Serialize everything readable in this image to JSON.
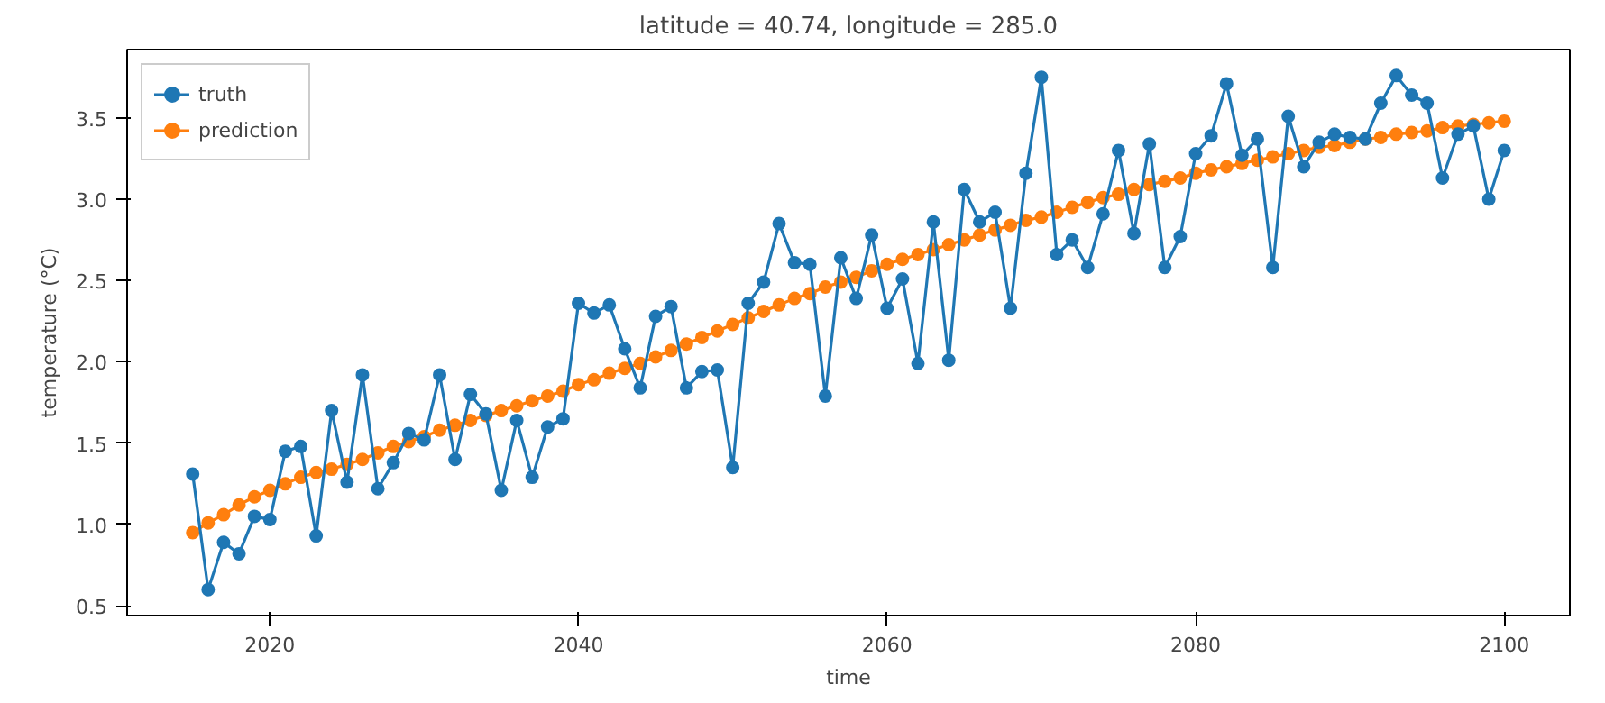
{
  "chart_data": {
    "type": "line",
    "title": "latitude = 40.74, longitude = 285.0",
    "xlabel": "time",
    "ylabel": "temperature (°C)",
    "x": [
      2015,
      2016,
      2017,
      2018,
      2019,
      2020,
      2021,
      2022,
      2023,
      2024,
      2025,
      2026,
      2027,
      2028,
      2029,
      2030,
      2031,
      2032,
      2033,
      2034,
      2035,
      2036,
      2037,
      2038,
      2039,
      2040,
      2041,
      2042,
      2043,
      2044,
      2045,
      2046,
      2047,
      2048,
      2049,
      2050,
      2051,
      2052,
      2053,
      2054,
      2055,
      2056,
      2057,
      2058,
      2059,
      2060,
      2061,
      2062,
      2063,
      2064,
      2065,
      2066,
      2067,
      2068,
      2069,
      2070,
      2071,
      2072,
      2073,
      2074,
      2075,
      2076,
      2077,
      2078,
      2079,
      2080,
      2081,
      2082,
      2083,
      2084,
      2085,
      2086,
      2087,
      2088,
      2089,
      2090,
      2091,
      2092,
      2093,
      2094,
      2095,
      2096,
      2097,
      2098,
      2099,
      2100
    ],
    "series": [
      {
        "name": "truth",
        "color": "#1f77b4",
        "values": [
          1.31,
          0.6,
          0.89,
          0.82,
          1.05,
          1.03,
          1.45,
          1.48,
          0.93,
          1.7,
          1.26,
          1.92,
          1.22,
          1.38,
          1.56,
          1.52,
          1.92,
          1.4,
          1.8,
          1.68,
          1.21,
          1.64,
          1.29,
          1.6,
          1.65,
          2.36,
          2.3,
          2.35,
          2.08,
          1.84,
          2.28,
          2.34,
          1.84,
          1.94,
          1.95,
          1.35,
          2.36,
          2.49,
          2.85,
          2.61,
          2.6,
          1.79,
          2.64,
          2.39,
          2.78,
          2.33,
          2.51,
          1.99,
          2.86,
          2.01,
          3.06,
          2.86,
          2.92,
          2.33,
          3.16,
          3.75,
          2.66,
          2.75,
          2.58,
          2.91,
          3.3,
          2.79,
          3.34,
          2.58,
          2.77,
          3.28,
          3.39,
          3.71,
          3.27,
          3.37,
          2.58,
          3.51,
          3.2,
          3.35,
          3.4,
          3.38,
          3.37,
          3.59,
          3.76,
          3.64,
          3.59,
          3.13,
          3.4,
          3.45,
          3.0,
          3.3
        ]
      },
      {
        "name": "prediction",
        "color": "#ff7f0e",
        "values": [
          0.95,
          1.01,
          1.06,
          1.12,
          1.17,
          1.21,
          1.25,
          1.29,
          1.32,
          1.34,
          1.37,
          1.4,
          1.44,
          1.48,
          1.51,
          1.54,
          1.58,
          1.61,
          1.64,
          1.67,
          1.7,
          1.73,
          1.76,
          1.79,
          1.82,
          1.86,
          1.89,
          1.93,
          1.96,
          1.99,
          2.03,
          2.07,
          2.11,
          2.15,
          2.19,
          2.23,
          2.27,
          2.31,
          2.35,
          2.39,
          2.42,
          2.46,
          2.49,
          2.52,
          2.56,
          2.6,
          2.63,
          2.66,
          2.69,
          2.72,
          2.75,
          2.78,
          2.81,
          2.84,
          2.87,
          2.89,
          2.92,
          2.95,
          2.98,
          3.01,
          3.03,
          3.06,
          3.09,
          3.11,
          3.13,
          3.16,
          3.18,
          3.2,
          3.22,
          3.24,
          3.26,
          3.28,
          3.3,
          3.32,
          3.33,
          3.35,
          3.37,
          3.38,
          3.4,
          3.41,
          3.42,
          3.44,
          3.45,
          3.46,
          3.47,
          3.48
        ]
      }
    ],
    "xlim": [
      2010.75,
      2104.25
    ],
    "ylim": [
      0.44,
      3.92
    ],
    "xticks": [
      2020,
      2040,
      2060,
      2080,
      2100
    ],
    "yticks": [
      {
        "value": 0.5,
        "label": "0.5"
      },
      {
        "value": 1.0,
        "label": "1.0"
      },
      {
        "value": 1.5,
        "label": "1.5"
      },
      {
        "value": 2.0,
        "label": "2.0"
      },
      {
        "value": 2.5,
        "label": "2.5"
      },
      {
        "value": 3.0,
        "label": "3.0"
      },
      {
        "value": 3.5,
        "label": "3.5"
      }
    ],
    "legend": "top left",
    "marker": "circle",
    "line_style": "solid"
  }
}
